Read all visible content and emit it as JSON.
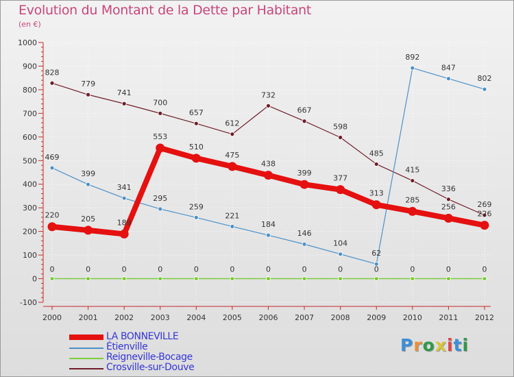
{
  "title": "Evolution du Montant de la Dette par Habitant",
  "unit": "(en €)",
  "logo": {
    "letters": [
      "P",
      "r",
      "o",
      "x",
      "i",
      "t",
      "i"
    ],
    "colors": [
      "#3a8fd8",
      "#e8903a",
      "#2f9a4a",
      "#d8c43a",
      "#e24444",
      "#3a8fd8",
      "#2f9a4a"
    ]
  },
  "chart_data": {
    "type": "line",
    "title": "Evolution du Montant de la Dette par Habitant",
    "ylabel": "(en €)",
    "ylim": [
      -100,
      1000
    ],
    "yticks": [
      -100,
      0,
      100,
      200,
      300,
      400,
      500,
      600,
      700,
      800,
      900,
      1000
    ],
    "x": [
      "2000",
      "2001",
      "2002",
      "2003",
      "2004",
      "2005",
      "2006",
      "2007",
      "2008",
      "2009",
      "2010",
      "2011",
      "2012"
    ],
    "series": [
      {
        "name": "Crosville-sur-Douve",
        "color": "#6e1c28",
        "values": [
          828,
          779,
          741,
          700,
          657,
          612,
          732,
          667,
          598,
          485,
          415,
          336,
          269
        ]
      },
      {
        "name": "Étienville",
        "color": "#4a90c8",
        "values": [
          469,
          399,
          341,
          295,
          259,
          221,
          184,
          146,
          104,
          62,
          892,
          847,
          802
        ]
      },
      {
        "name": "Reigneville-Bocage",
        "color": "#7acc3c",
        "values": [
          0,
          0,
          0,
          0,
          0,
          0,
          0,
          0,
          0,
          0,
          0,
          0,
          0
        ]
      },
      {
        "name": "LA BONNEVILLE",
        "color": "#e51010",
        "values": [
          220,
          205,
          189,
          553,
          510,
          475,
          438,
          399,
          377,
          313,
          285,
          256,
          226
        ]
      }
    ],
    "legend": [
      "LA BONNEVILLE",
      "Étienville",
      "Reigneville-Bocage",
      "Crosville-sur-Douve"
    ]
  }
}
